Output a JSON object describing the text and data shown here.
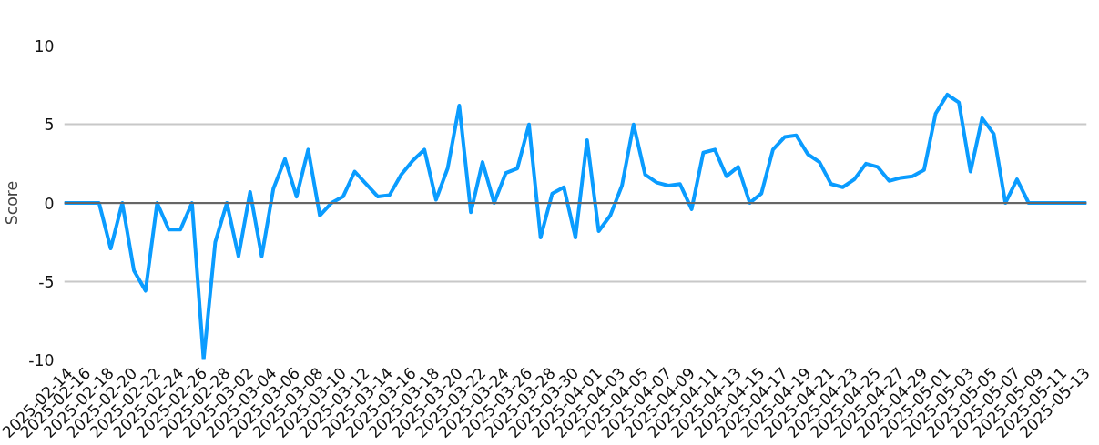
{
  "chart_data": {
    "type": "line",
    "ylabel": "Score",
    "x": [
      "2025-02-14",
      "2025-02-15",
      "2025-02-16",
      "2025-02-17",
      "2025-02-18",
      "2025-02-19",
      "2025-02-20",
      "2025-02-21",
      "2025-02-22",
      "2025-02-23",
      "2025-02-24",
      "2025-02-25",
      "2025-02-26",
      "2025-02-27",
      "2025-02-28",
      "2025-03-01",
      "2025-03-02",
      "2025-03-03",
      "2025-03-04",
      "2025-03-05",
      "2025-03-06",
      "2025-03-07",
      "2025-03-08",
      "2025-03-09",
      "2025-03-10",
      "2025-03-11",
      "2025-03-12",
      "2025-03-13",
      "2025-03-14",
      "2025-03-15",
      "2025-03-16",
      "2025-03-17",
      "2025-03-18",
      "2025-03-19",
      "2025-03-20",
      "2025-03-21",
      "2025-03-22",
      "2025-03-23",
      "2025-03-24",
      "2025-03-25",
      "2025-03-26",
      "2025-03-27",
      "2025-03-28",
      "2025-03-29",
      "2025-03-30",
      "2025-03-31",
      "2025-04-01",
      "2025-04-02",
      "2025-04-03",
      "2025-04-04",
      "2025-04-05",
      "2025-04-06",
      "2025-04-07",
      "2025-04-08",
      "2025-04-09",
      "2025-04-10",
      "2025-04-11",
      "2025-04-12",
      "2025-04-13",
      "2025-04-14",
      "2025-04-15",
      "2025-04-16",
      "2025-04-17",
      "2025-04-18",
      "2025-04-19",
      "2025-04-20",
      "2025-04-21",
      "2025-04-22",
      "2025-04-23",
      "2025-04-24",
      "2025-04-25",
      "2025-04-26",
      "2025-04-27",
      "2025-04-28",
      "2025-04-29",
      "2025-04-30",
      "2025-05-01",
      "2025-05-02",
      "2025-05-03",
      "2025-05-04",
      "2025-05-05",
      "2025-05-06",
      "2025-05-07",
      "2025-05-08",
      "2025-05-09",
      "2025-05-10",
      "2025-05-11",
      "2025-05-12",
      "2025-05-13"
    ],
    "series": [
      {
        "color": "#0a9cff",
        "values": [
          0,
          0,
          0,
          0,
          -2.9,
          0,
          -4.3,
          -5.6,
          0,
          -1.7,
          -1.7,
          0,
          -10,
          -2.5,
          0,
          -3.4,
          0.7,
          -3.4,
          0.9,
          2.8,
          0.4,
          3.4,
          -0.8,
          0,
          0.4,
          2.0,
          1.2,
          0.4,
          0.5,
          1.8,
          2.7,
          3.4,
          0.2,
          2.2,
          6.2,
          -0.6,
          2.6,
          0,
          1.9,
          2.2,
          5.0,
          -2.2,
          0.6,
          1.0,
          -2.2,
          4.0,
          -1.8,
          -0.8,
          1.1,
          5.0,
          1.8,
          1.3,
          1.1,
          1.2,
          -0.4,
          3.2,
          3.4,
          1.7,
          2.3,
          0,
          0.6,
          3.4,
          4.2,
          4.3,
          3.1,
          2.6,
          1.2,
          1.0,
          1.5,
          2.5,
          2.3,
          1.4,
          1.6,
          1.7,
          2.1,
          5.7,
          6.9,
          6.4,
          2.0,
          5.4,
          4.4,
          0,
          1.5,
          0,
          0,
          0,
          0,
          0,
          0
        ]
      }
    ],
    "xlim": [
      "2025-02-14",
      "2025-05-13"
    ],
    "xticks": [
      "2025-02-14",
      "2025-02-16",
      "2025-02-18",
      "2025-02-20",
      "2025-02-22",
      "2025-02-24",
      "2025-02-26",
      "2025-02-28",
      "2025-03-02",
      "2025-03-04",
      "2025-03-06",
      "2025-03-08",
      "2025-03-10",
      "2025-03-12",
      "2025-03-14",
      "2025-03-16",
      "2025-03-18",
      "2025-03-20",
      "2025-03-22",
      "2025-03-24",
      "2025-03-26",
      "2025-03-28",
      "2025-03-30",
      "2025-04-01",
      "2025-04-03",
      "2025-04-05",
      "2025-04-07",
      "2025-04-09",
      "2025-04-11",
      "2025-04-13",
      "2025-04-15",
      "2025-04-17",
      "2025-04-19",
      "2025-04-21",
      "2025-04-23",
      "2025-04-25",
      "2025-04-27",
      "2025-04-29",
      "2025-05-01",
      "2025-05-03",
      "2025-05-05",
      "2025-05-07",
      "2025-05-09",
      "2025-05-11",
      "2025-05-13"
    ],
    "ylim": [
      -10,
      10
    ],
    "yticks": [
      -10,
      -5,
      0,
      5,
      10
    ],
    "ref_lines": [
      {
        "axis": "y",
        "value": 0,
        "color": "#666666"
      }
    ],
    "grid": "y",
    "marker": "none",
    "line_style": "solid"
  }
}
